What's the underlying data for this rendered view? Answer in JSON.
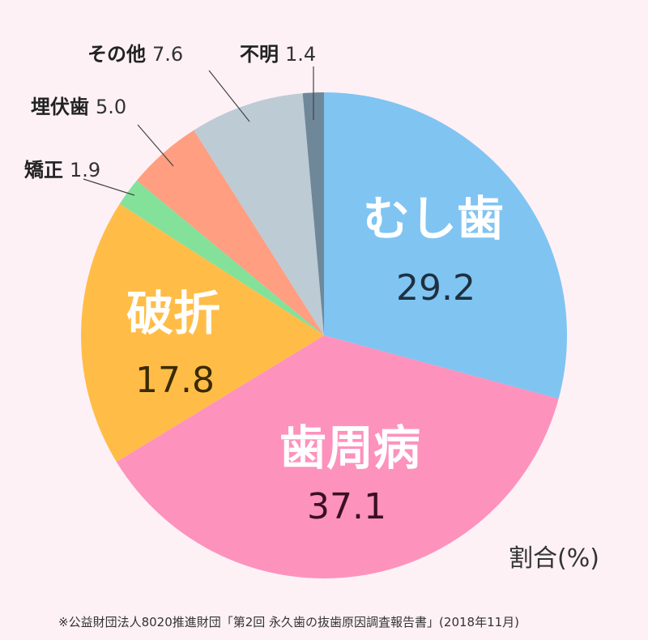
{
  "chart_data": {
    "type": "pie",
    "unit_label": "割合(%)",
    "source": "※公益財団法人8020推進財団「第2回 永久歯の抜歯原因調査報告書」(2018年11月)",
    "slices": [
      {
        "label": "むし歯",
        "value": 29.2,
        "value_label": "29.2",
        "color": "#80c4f2"
      },
      {
        "label": "歯周病",
        "value": 37.1,
        "value_label": "37.1",
        "color": "#fd92bd"
      },
      {
        "label": "破折",
        "value": 17.8,
        "value_label": "17.8",
        "color": "#ffbd48"
      },
      {
        "label": "矯正",
        "value": 1.9,
        "value_label": "1.9",
        "color": "#84e19a"
      },
      {
        "label": "埋伏歯",
        "value": 5.0,
        "value_label": "5.0",
        "color": "#ff9e80"
      },
      {
        "label": "その他",
        "value": 7.6,
        "value_label": "7.6",
        "color": "#bdcbd5"
      },
      {
        "label": "不明",
        "value": 1.4,
        "value_label": "1.4",
        "color": "#6e8899"
      }
    ]
  }
}
